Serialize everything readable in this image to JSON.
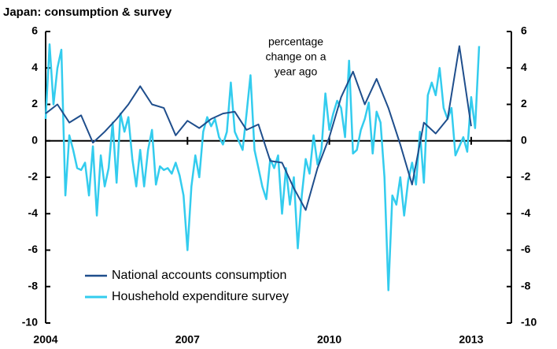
{
  "chart_data": {
    "type": "line",
    "title": "Japan: consumption & survey",
    "annotation": [
      "percentage",
      "change on a",
      "year ago"
    ],
    "xlim": [
      2004,
      2013.85
    ],
    "xticks": [
      2004,
      2007,
      2010,
      2013
    ],
    "ylim": [
      -10,
      6
    ],
    "yticks": [
      -10,
      -8,
      -6,
      -4,
      -2,
      0,
      2,
      4,
      6
    ],
    "y2lim": [
      -10,
      6
    ],
    "y2ticks": [
      -10,
      -8,
      -6,
      -4,
      -2,
      0,
      2,
      4,
      6
    ],
    "legend": "lower-left",
    "series": [
      {
        "name": "National accounts consumption",
        "color": "#1f4e8c",
        "width": 2,
        "x": [
          2004,
          2004.25,
          2004.5,
          2004.75,
          2005,
          2005.25,
          2005.5,
          2005.75,
          2006,
          2006.25,
          2006.5,
          2006.75,
          2007,
          2007.25,
          2007.5,
          2007.75,
          2008,
          2008.25,
          2008.5,
          2008.75,
          2009,
          2009.25,
          2009.5,
          2009.75,
          2010,
          2010.25,
          2010.5,
          2010.75,
          2011,
          2011.25,
          2011.5,
          2011.75,
          2012,
          2012.25,
          2012.5,
          2012.75,
          2013
        ],
        "values": [
          1.5,
          2.0,
          1.0,
          1.4,
          -0.1,
          0.5,
          1.2,
          2.0,
          3.0,
          2.0,
          1.8,
          0.3,
          1.1,
          0.7,
          1.2,
          1.5,
          1.6,
          0.6,
          0.9,
          -1.1,
          -1.2,
          -2.6,
          -3.8,
          -1.5,
          0.2,
          2.4,
          3.8,
          2.0,
          3.4,
          1.8,
          -0.2,
          -2.4,
          1.0,
          0.4,
          1.2,
          5.2,
          0.8
        ]
      },
      {
        "name": "Houshehold expenditure survey",
        "color": "#33ccee",
        "width": 2.5,
        "x": [
          2004,
          2004.083,
          2004.167,
          2004.25,
          2004.333,
          2004.417,
          2004.5,
          2004.583,
          2004.667,
          2004.75,
          2004.833,
          2004.917,
          2005,
          2005.083,
          2005.167,
          2005.25,
          2005.333,
          2005.417,
          2005.5,
          2005.583,
          2005.667,
          2005.75,
          2005.833,
          2005.917,
          2006,
          2006.083,
          2006.167,
          2006.25,
          2006.333,
          2006.417,
          2006.5,
          2006.583,
          2006.667,
          2006.75,
          2006.833,
          2006.917,
          2007,
          2007.083,
          2007.167,
          2007.25,
          2007.333,
          2007.417,
          2007.5,
          2007.583,
          2007.667,
          2007.75,
          2007.833,
          2007.917,
          2008,
          2008.083,
          2008.167,
          2008.25,
          2008.333,
          2008.417,
          2008.5,
          2008.583,
          2008.667,
          2008.75,
          2008.833,
          2008.917,
          2009,
          2009.083,
          2009.167,
          2009.25,
          2009.333,
          2009.417,
          2009.5,
          2009.583,
          2009.667,
          2009.75,
          2009.833,
          2009.917,
          2010,
          2010.083,
          2010.167,
          2010.25,
          2010.333,
          2010.417,
          2010.5,
          2010.583,
          2010.667,
          2010.75,
          2010.833,
          2010.917,
          2011,
          2011.083,
          2011.167,
          2011.25,
          2011.333,
          2011.417,
          2011.5,
          2011.583,
          2011.667,
          2011.75,
          2011.833,
          2011.917,
          2012,
          2012.083,
          2012.167,
          2012.25,
          2012.333,
          2012.417,
          2012.5,
          2012.583,
          2012.667,
          2012.75,
          2012.833,
          2012.917,
          2013,
          2013.083,
          2013.167
        ],
        "values": [
          1.2,
          5.3,
          2.0,
          4.0,
          5.0,
          -3.0,
          0.3,
          -0.5,
          -1.5,
          -1.6,
          -1.2,
          -3.0,
          -0.3,
          -4.1,
          -0.8,
          -2.5,
          -1.5,
          1.0,
          -2.3,
          1.5,
          0.5,
          1.3,
          -1.0,
          -2.5,
          -0.5,
          -2.5,
          -0.5,
          0.6,
          -2.4,
          -1.4,
          -1.6,
          -1.5,
          -1.8,
          -1.2,
          -1.9,
          -3.0,
          -6.0,
          -2.5,
          -0.8,
          -2.0,
          0.5,
          1.3,
          0.8,
          1.2,
          0.2,
          -0.2,
          0.5,
          3.2,
          0.5,
          0.0,
          -0.5,
          1.5,
          3.6,
          -0.5,
          -1.5,
          -2.5,
          -3.2,
          -1.0,
          -1.5,
          -0.8,
          -4.0,
          -1.5,
          -3.5,
          -2.0,
          -5.9,
          -3.0,
          -1.0,
          -1.8,
          0.3,
          -1.3,
          -0.5,
          2.6,
          0.6,
          1.5,
          2.2,
          1.8,
          0.2,
          4.4,
          -0.7,
          -0.5,
          0.6,
          1.2,
          2.1,
          -0.7,
          1.6,
          1.0,
          -2.0,
          -8.2,
          -3.0,
          -3.5,
          -2.0,
          -4.1,
          -2.2,
          -1.2,
          -2.4,
          0.5,
          -2.3,
          2.5,
          3.2,
          2.5,
          4.0,
          1.8,
          1.2,
          1.8,
          -0.8,
          -0.3,
          0.2,
          -0.6,
          2.4,
          0.7,
          5.2
        ]
      }
    ]
  }
}
